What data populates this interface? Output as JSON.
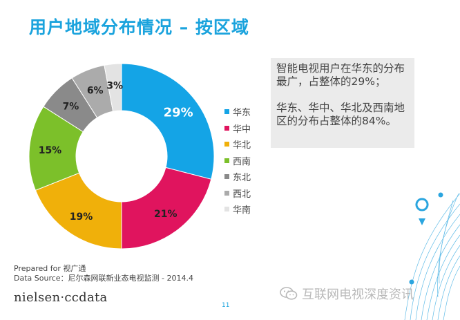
{
  "page": {
    "title": "用户地域分布情况 – 按区域",
    "page_number": "11"
  },
  "chart_data": {
    "type": "pie",
    "variant": "donut",
    "title": "用户地域分布情况 – 按区域",
    "categories": [
      "华东",
      "华中",
      "华北",
      "西南",
      "东北",
      "西北",
      "华南"
    ],
    "values": [
      29,
      21,
      19,
      15,
      7,
      6,
      3
    ],
    "data_labels": [
      "29%",
      "21%",
      "19%",
      "15%",
      "7%",
      "6%",
      "3%"
    ],
    "colors": [
      "#14a4e6",
      "#e0145e",
      "#f0b00a",
      "#7cc02a",
      "#8a8a8a",
      "#ababab",
      "#e3e3e3"
    ],
    "label_colors": [
      "#ffffff",
      "#222222",
      "#222222",
      "#222222",
      "#222222",
      "#222222",
      "#222222"
    ],
    "legend_position": "right"
  },
  "callout": {
    "line1": "智能电视用户在华东的分布最广，占整体的29%；",
    "line2": "华东、华中、华北及西南地区的分布占整体的84%。"
  },
  "footer": {
    "prepared": "Prepared for 视广通",
    "source": "Data Source：尼尔森网联新业态电视监测 - 2014.4",
    "logo": "nielsen·ccdata"
  },
  "watermark": {
    "text": "互联网电视深度资讯",
    "icon": "wechat-icon"
  }
}
